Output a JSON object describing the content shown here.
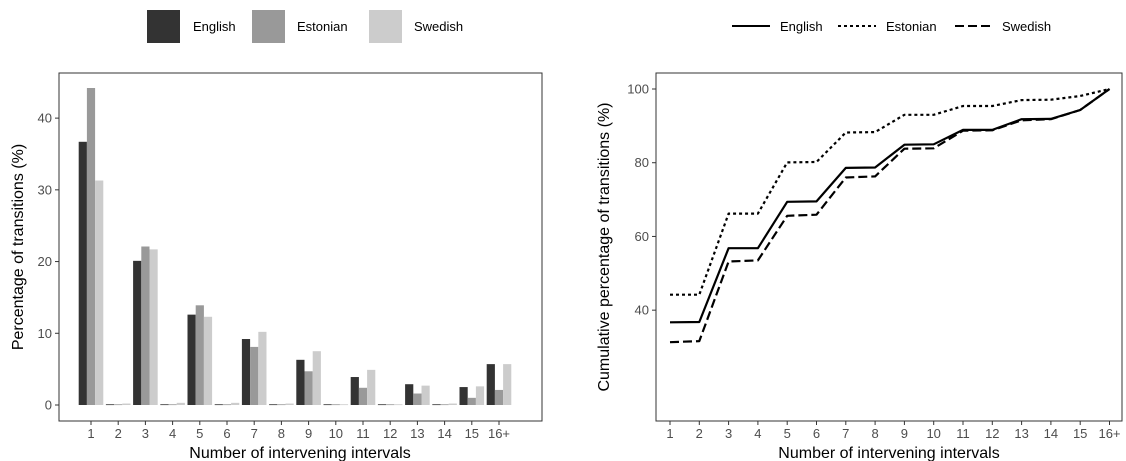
{
  "chart_data": [
    {
      "type": "bar",
      "title": "",
      "xlabel": "Number of intervening intervals",
      "ylabel": "Percentage of transitions (%)",
      "categories": [
        "1",
        "2",
        "3",
        "4",
        "5",
        "6",
        "7",
        "8",
        "9",
        "10",
        "11",
        "12",
        "13",
        "14",
        "15",
        "16+"
      ],
      "ylim": [
        0,
        45
      ],
      "yticks": [
        0,
        10,
        20,
        30,
        40
      ],
      "grid": false,
      "legend_position": "top",
      "series": [
        {
          "name": "English",
          "color": "#333333",
          "values": [
            36.7,
            0.1,
            20.1,
            0.1,
            12.6,
            0.1,
            9.2,
            0.1,
            6.3,
            0.1,
            3.9,
            0.1,
            2.9,
            0.1,
            2.5,
            5.7
          ]
        },
        {
          "name": "Estonian",
          "color": "#999999",
          "values": [
            44.2,
            0.1,
            22.1,
            0.1,
            13.9,
            0.1,
            8.1,
            0.1,
            4.7,
            0.1,
            2.4,
            0.1,
            1.6,
            0.1,
            1.0,
            2.1
          ]
        },
        {
          "name": "Swedish",
          "color": "#cccccc",
          "values": [
            31.3,
            0.2,
            21.7,
            0.3,
            12.3,
            0.3,
            10.2,
            0.2,
            7.5,
            0.1,
            4.9,
            0.1,
            2.7,
            0.2,
            2.6,
            5.7
          ]
        }
      ]
    },
    {
      "type": "line",
      "title": "",
      "xlabel": "Number of intervening intervals",
      "ylabel": "Cumulative percentage of transitions (%)",
      "categories": [
        "1",
        "2",
        "3",
        "4",
        "5",
        "6",
        "7",
        "8",
        "9",
        "10",
        "11",
        "12",
        "13",
        "14",
        "15",
        "16+"
      ],
      "ylim": [
        29,
        103
      ],
      "yticks": [
        40,
        60,
        80,
        100
      ],
      "grid": false,
      "legend_position": "top",
      "series": [
        {
          "name": "English",
          "dash": "solid",
          "values": [
            36.7,
            36.8,
            56.8,
            56.8,
            69.4,
            69.5,
            78.6,
            78.7,
            84.9,
            85.0,
            88.9,
            88.9,
            91.8,
            91.9,
            94.3,
            100
          ]
        },
        {
          "name": "Estonian",
          "dash": "dotted",
          "values": [
            44.2,
            44.2,
            66.2,
            66.2,
            80.1,
            80.2,
            88.2,
            88.3,
            93.0,
            93.0,
            95.4,
            95.4,
            97.0,
            97.1,
            98.1,
            100
          ]
        },
        {
          "name": "Swedish",
          "dash": "dashed",
          "values": [
            31.3,
            31.6,
            53.2,
            53.5,
            65.6,
            65.9,
            76.0,
            76.3,
            83.8,
            83.9,
            88.7,
            88.8,
            91.5,
            91.8,
            94.3,
            100
          ]
        }
      ]
    }
  ]
}
